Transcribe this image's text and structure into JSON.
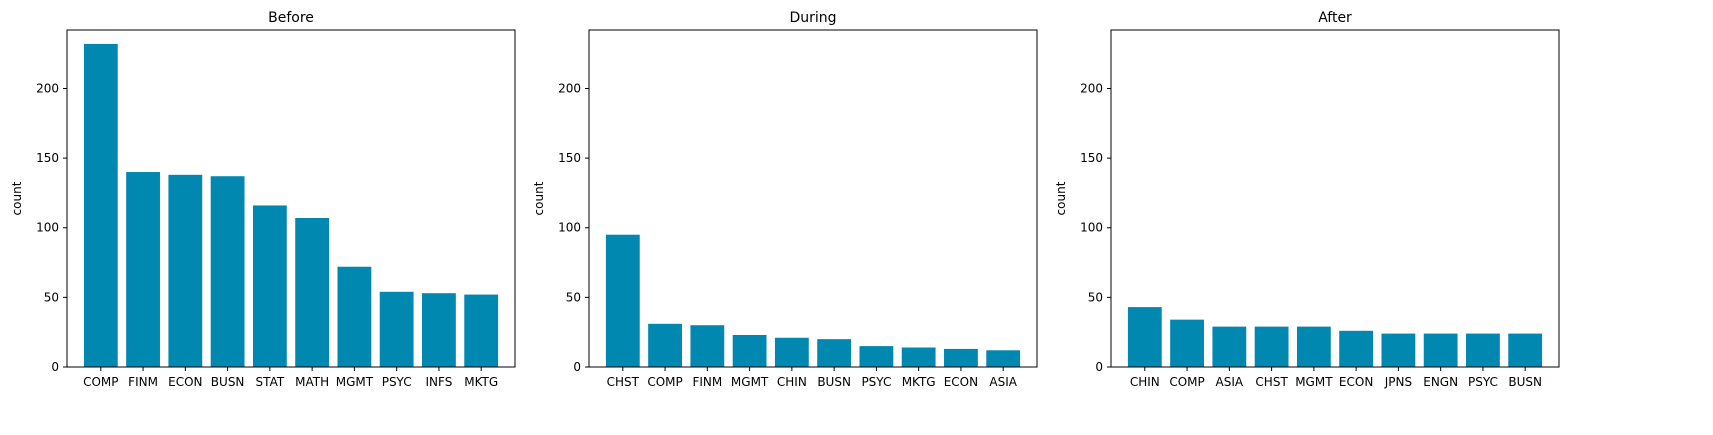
{
  "colors": {
    "bar": "#0088b0",
    "axis": "#000000",
    "background": "#ffffff"
  },
  "chart_data": [
    {
      "type": "bar",
      "title": "Before",
      "xlabel": "",
      "ylabel": "count",
      "ylim": [
        0,
        242
      ],
      "yticks": [
        0,
        50,
        100,
        150,
        200
      ],
      "grid": false,
      "categories": [
        "COMP",
        "FINM",
        "ECON",
        "BUSN",
        "STAT",
        "MATH",
        "MGMT",
        "PSYC",
        "INFS",
        "MKTG"
      ],
      "values": [
        232,
        140,
        138,
        137,
        116,
        107,
        72,
        54,
        53,
        52
      ]
    },
    {
      "type": "bar",
      "title": "During",
      "xlabel": "",
      "ylabel": "count",
      "ylim": [
        0,
        242
      ],
      "yticks": [
        0,
        50,
        100,
        150,
        200
      ],
      "grid": false,
      "categories": [
        "CHST",
        "COMP",
        "FINM",
        "MGMT",
        "CHIN",
        "BUSN",
        "PSYC",
        "MKTG",
        "ECON",
        "ASIA"
      ],
      "values": [
        95,
        31,
        30,
        23,
        21,
        20,
        15,
        14,
        13,
        12
      ]
    },
    {
      "type": "bar",
      "title": "After",
      "xlabel": "",
      "ylabel": "count",
      "ylim": [
        0,
        242
      ],
      "yticks": [
        0,
        50,
        100,
        150,
        200
      ],
      "grid": false,
      "categories": [
        "CHIN",
        "COMP",
        "ASIA",
        "CHST",
        "MGMT",
        "ECON",
        "JPNS",
        "ENGN",
        "PSYC",
        "BUSN"
      ],
      "values": [
        43,
        34,
        29,
        29,
        29,
        26,
        24,
        24,
        24,
        24
      ]
    }
  ]
}
